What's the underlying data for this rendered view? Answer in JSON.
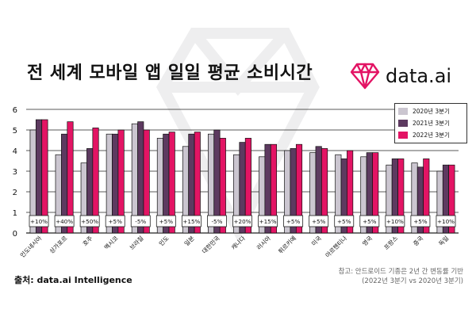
{
  "title": "전 세계 모바일 앱 일일 평균 소비시간",
  "brand": {
    "name": "data.ai"
  },
  "source": "출처: data.ai Intelligence",
  "note": {
    "line1": "참고: 안드로이드 기종은 2년 간 변동률 기반",
    "line2": "(2022년 3분기 vs 2020년 3분기)"
  },
  "colors": {
    "series_2020": "#cbc6d0",
    "series_2021": "#5d3a60",
    "series_2022": "#e31464",
    "border": "#222222"
  },
  "chart_data": {
    "type": "bar",
    "title": "전 세계 모바일 앱 일일 평균 소비시간",
    "xlabel": "",
    "ylabel": "",
    "ylim": [
      0,
      6
    ],
    "yticks": [
      0,
      1,
      2,
      3,
      4,
      5,
      6
    ],
    "grid": true,
    "legend_position": "top-right",
    "categories": [
      "인도네시아",
      "싱가포르",
      "호주",
      "멕시코",
      "브라질",
      "인도",
      "일본",
      "대한민국",
      "캐나다",
      "러시아",
      "튀르키예",
      "미국",
      "아르헨티나",
      "영국",
      "프랑스",
      "중국",
      "독일"
    ],
    "series": [
      {
        "name": "2020년 3분기",
        "values": [
          5.0,
          3.8,
          3.4,
          4.8,
          5.3,
          4.6,
          4.2,
          4.8,
          3.8,
          3.7,
          4.0,
          3.9,
          3.8,
          3.7,
          3.3,
          3.4,
          3.0
        ]
      },
      {
        "name": "2021년 3분기",
        "values": [
          5.5,
          4.8,
          4.1,
          4.8,
          5.4,
          4.8,
          4.8,
          5.0,
          4.4,
          4.3,
          4.1,
          4.2,
          3.6,
          3.9,
          3.6,
          3.2,
          3.3
        ]
      },
      {
        "name": "2022년 3분기",
        "values": [
          5.5,
          5.4,
          5.1,
          5.0,
          5.0,
          4.9,
          4.9,
          4.6,
          4.6,
          4.3,
          4.3,
          4.1,
          4.0,
          3.9,
          3.6,
          3.6,
          3.3
        ]
      }
    ],
    "change_labels": [
      "+10%",
      "+40%",
      "+50%",
      "+5%",
      "-5%",
      "+5%",
      "+15%",
      "-5%",
      "+20%",
      "+15%",
      "+5%",
      "+5%",
      "+5%",
      "+5%",
      "+10%",
      "+5%",
      "+10%"
    ]
  }
}
